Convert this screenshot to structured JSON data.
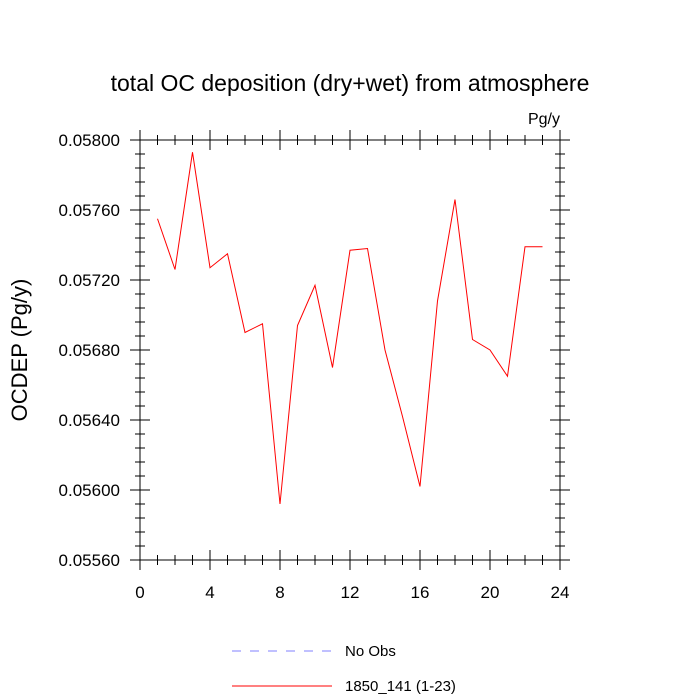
{
  "chart_data": {
    "type": "line",
    "title": "total OC deposition (dry+wet) from atmosphere",
    "units_label": "Pg/y",
    "xlabel": "",
    "ylabel": "OCDEP  (Pg/y)",
    "xlim": [
      0,
      24
    ],
    "ylim": [
      0.0556,
      0.058
    ],
    "x_ticks": [
      0,
      4,
      8,
      12,
      16,
      20,
      24
    ],
    "x_tick_labels": [
      "0",
      "4",
      "8",
      "12",
      "16",
      "20",
      "24"
    ],
    "y_ticks": [
      0.0556,
      0.056,
      0.0564,
      0.0568,
      0.0572,
      0.0576,
      0.058
    ],
    "y_tick_labels": [
      "0.05560",
      "0.05600",
      "0.05640",
      "0.05680",
      "0.05720",
      "0.05760",
      "0.05800"
    ],
    "grid": false,
    "legend_position": "bottom",
    "legend": [
      {
        "label": "No Obs",
        "color": "#8080ff",
        "style": "dashed"
      },
      {
        "label": "1850_141 (1-23)",
        "color": "#ff0000",
        "style": "solid"
      }
    ],
    "series": [
      {
        "name": "1850_141 (1-23)",
        "color": "#ff0000",
        "x": [
          1,
          2,
          3,
          4,
          5,
          6,
          7,
          8,
          9,
          10,
          11,
          12,
          13,
          14,
          15,
          16,
          17,
          18,
          19,
          20,
          21,
          22,
          23
        ],
        "values": [
          0.05755,
          0.05726,
          0.05793,
          0.05727,
          0.05735,
          0.0569,
          0.05695,
          0.05592,
          0.05694,
          0.05717,
          0.0567,
          0.05737,
          0.05738,
          0.0568,
          0.05642,
          0.05602,
          0.05708,
          0.05766,
          0.05686,
          0.0568,
          0.05665,
          0.05739,
          0.05739
        ]
      }
    ]
  }
}
